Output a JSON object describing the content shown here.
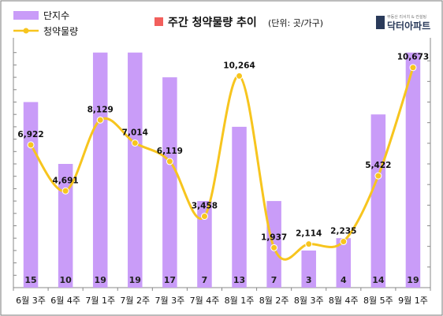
{
  "title": "주간 청약물량 추이",
  "unit": "(단위: 곳/가구)",
  "logo": {
    "brand": "닥터아파트",
    "tagline": "부동산 리서치 & 컨설팅"
  },
  "legend": {
    "bar_label": "단지수",
    "line_label": "청약물량"
  },
  "colors": {
    "bar": "#c99cf8",
    "line": "#f7c51e",
    "marker": "#f7c51e",
    "title_square": "#f25f5c",
    "axis": "#888888",
    "grid": "#ffffff"
  },
  "chart_data": {
    "type": "bar",
    "categories": [
      "6월3주",
      "6월4주",
      "7월1주",
      "7월2주",
      "7월3주",
      "7월4주",
      "8월1주",
      "8월2주",
      "8월3주",
      "8월4주",
      "8월5주",
      "9월1주"
    ],
    "category_labels": [
      "6월 3주",
      "6월 4주",
      "7월 1주",
      "7월 2주",
      "7월 3주",
      "7월 4주",
      "8월 1주",
      "8월 2주",
      "8월 3주",
      "8월 4주",
      "8월 5주",
      "9월 1주"
    ],
    "series": [
      {
        "name": "단지수",
        "type": "bar",
        "axis": "left",
        "values": [
          15,
          10,
          19,
          19,
          17,
          7,
          13,
          7,
          3,
          4,
          14,
          19
        ]
      },
      {
        "name": "청약물량",
        "type": "line",
        "smooth": true,
        "axis": "right",
        "values": [
          6922,
          4691,
          8129,
          7014,
          6119,
          3458,
          10264,
          1937,
          2114,
          2235,
          5422,
          10673
        ]
      }
    ],
    "value_labels": [
      "6,922",
      "4,691",
      "8,129",
      "7,014",
      "6,119",
      "3,458",
      "10,264",
      "1,937",
      "2,114",
      "2,235",
      "5,422",
      "10,673"
    ],
    "count_labels": [
      "15",
      "10",
      "19",
      "19",
      "17",
      "7",
      "13",
      "7",
      "3",
      "4",
      "14",
      "19"
    ],
    "left_ylim": [
      0,
      20
    ],
    "right_ylim": [
      0,
      12000
    ],
    "legend_position": "top-left",
    "grid": false
  }
}
